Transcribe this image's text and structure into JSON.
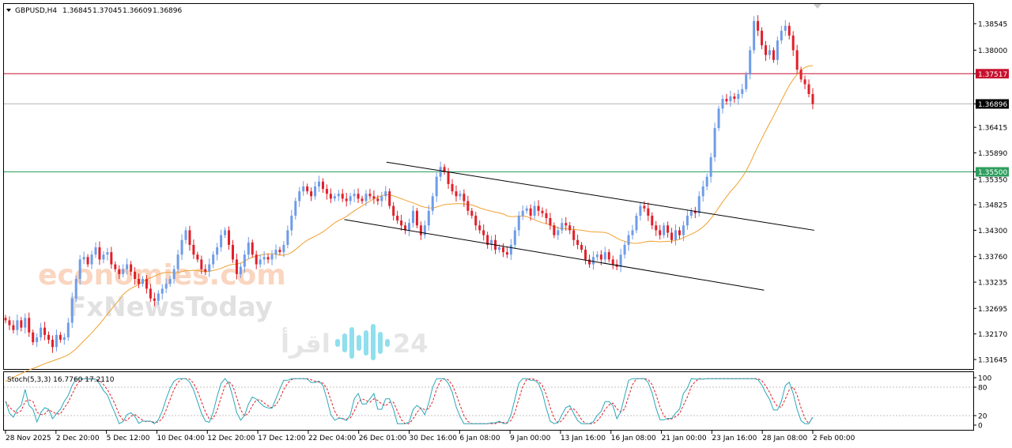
{
  "header": {
    "symbol": "GBPUSD,H4",
    "open": "1.36845",
    "high": "1.37045",
    "low": "1.36609",
    "close": "1.36896"
  },
  "indicator": {
    "label": "Stoch(5,3,3) 16.7760 17.2110",
    "levels": [
      "100",
      "80",
      "20",
      "0"
    ]
  },
  "price_axis": {
    "ticks": [
      "1.38545",
      "1.38000",
      "1.37517",
      "1.36896",
      "1.36415",
      "1.35890",
      "1.35500",
      "1.35350",
      "1.34825",
      "1.34300",
      "1.33760",
      "1.33235",
      "1.32695",
      "1.32170",
      "1.31645"
    ]
  },
  "time_axis": {
    "ticks": [
      "28 Nov 2025",
      "2 Dec 20:00",
      "5 Dec 12:00",
      "10 Dec 04:00",
      "12 Dec 20:00",
      "17 Dec 12:00",
      "22 Dec 04:00",
      "26 Dec 01:00",
      "30 Dec 16:00",
      "6 Jan 08:00",
      "9 Jan 00:00",
      "13 Jan 16:00",
      "16 Jan 08:00",
      "21 Jan 00:00",
      "23 Jan 16:00",
      "28 Jan 08:00",
      "2 Feb 00:00"
    ]
  },
  "watermarks": {
    "brand_top": "economies.com",
    "brand_bottom": "FxNewsToday",
    "brand_arabic": "اقرأ",
    "brand_number": "24"
  },
  "colors": {
    "bull": "#6f9ce8",
    "bear": "#e0202a",
    "ma": "#f0a030",
    "resistance": "#c8102e",
    "support": "#2e9e5e",
    "stoch_main": "#2aa7b8",
    "stoch_signal": "#e0202a"
  },
  "chart_data": {
    "type": "candlestick",
    "symbol": "GBPUSD",
    "timeframe": "H4",
    "ylim": [
      1.3145,
      1.3895
    ],
    "horizontal_lines": [
      {
        "price": 1.37517,
        "label": "1.37517",
        "role": "resistance"
      },
      {
        "price": 1.36896,
        "label": "1.36896",
        "role": "current price"
      },
      {
        "price": 1.355,
        "label": "1.35500",
        "role": "support"
      }
    ],
    "approx_closes": [
      1.3245,
      1.3235,
      1.3225,
      1.3245,
      1.323,
      1.325,
      1.322,
      1.32,
      1.321,
      1.323,
      1.3215,
      1.3205,
      1.319,
      1.3215,
      1.3205,
      1.321,
      1.324,
      1.329,
      1.333,
      1.337,
      1.3375,
      1.336,
      1.338,
      1.3395,
      1.337,
      1.338,
      1.3385,
      1.336,
      1.335,
      1.334,
      1.335,
      1.336,
      1.3345,
      1.333,
      1.332,
      1.333,
      1.331,
      1.329,
      1.3285,
      1.33,
      1.331,
      1.332,
      1.333,
      1.335,
      1.338,
      1.341,
      1.343,
      1.34,
      1.338,
      1.337,
      1.335,
      1.3345,
      1.336,
      1.338,
      1.3395,
      1.342,
      1.343,
      1.34,
      1.337,
      1.334,
      1.3355,
      1.338,
      1.3405,
      1.338,
      1.336,
      1.337,
      1.3375,
      1.337,
      1.338,
      1.339,
      1.3385,
      1.34,
      1.343,
      1.346,
      1.349,
      1.351,
      1.352,
      1.351,
      1.35,
      1.352,
      1.353,
      1.3515,
      1.3505,
      1.3495,
      1.35,
      1.3505,
      1.3495,
      1.349,
      1.35,
      1.3505,
      1.3495,
      1.349,
      1.3505,
      1.35,
      1.3495,
      1.349,
      1.35,
      1.351,
      1.348,
      1.346,
      1.345,
      1.344,
      1.343,
      1.3445,
      1.347,
      1.344,
      1.342,
      1.344,
      1.347,
      1.35,
      1.354,
      1.356,
      1.355,
      1.3525,
      1.351,
      1.35,
      1.3505,
      1.349,
      1.347,
      1.346,
      1.344,
      1.343,
      1.342,
      1.34,
      1.341,
      1.339,
      1.3395,
      1.3385,
      1.338,
      1.34,
      1.343,
      1.346,
      1.347,
      1.3475,
      1.346,
      1.348,
      1.347,
      1.3465,
      1.3455,
      1.344,
      1.342,
      1.343,
      1.3445,
      1.344,
      1.343,
      1.341,
      1.34,
      1.339,
      1.337,
      1.336,
      1.3375,
      1.338,
      1.337,
      1.3385,
      1.337,
      1.336,
      1.3355,
      1.338,
      1.34,
      1.342,
      1.343,
      1.346,
      1.348,
      1.3475,
      1.346,
      1.344,
      1.343,
      1.342,
      1.344,
      1.3425,
      1.341,
      1.343,
      1.342,
      1.344,
      1.346,
      1.347,
      1.3465,
      1.35,
      1.352,
      1.354,
      1.358,
      1.364,
      1.368,
      1.37,
      1.3695,
      1.3705,
      1.37,
      1.371,
      1.372,
      1.375,
      1.38,
      1.386,
      1.384,
      1.381,
      1.379,
      1.38,
      1.378,
      1.382,
      1.384,
      1.385,
      1.383,
      1.38,
      1.376,
      1.374,
      1.373,
      1.371,
      1.36896
    ],
    "moving_average": {
      "start": 1.312,
      "end": 1.364
    },
    "channel": {
      "upper": {
        "from": [
          0.472,
          1.357
        ],
        "to": [
          1.0,
          1.343
        ]
      },
      "lower": {
        "from": [
          0.42,
          1.3452
        ],
        "to": [
          0.938,
          1.3307
        ]
      }
    },
    "stochastic": {
      "main_last": 16.776,
      "signal_last": 17.211,
      "levels": [
        20,
        80
      ]
    }
  }
}
